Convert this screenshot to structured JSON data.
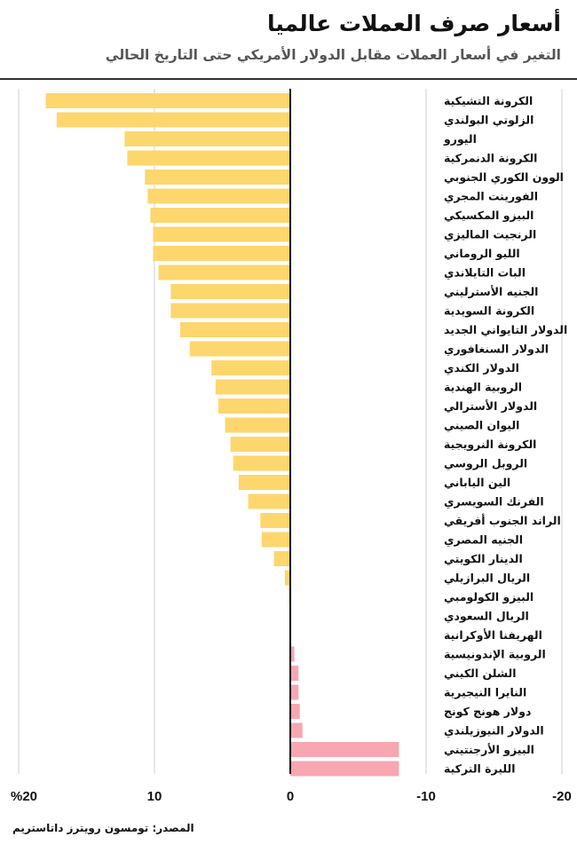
{
  "header": {
    "title": "أسعار صرف العملات عالميا",
    "subtitle": "التغير في أسعار العملات مقابل الدولار الأمريكي حتى التاريخ الحالي"
  },
  "source": "المصدر: تومسون رويترز داتاستريم",
  "chart_data": {
    "type": "bar",
    "orientation": "horizontal",
    "title": "أسعار صرف العملات عالميا",
    "subtitle": "التغير في أسعار العملات مقابل الدولار الأمريكي حتى التاريخ الحالي",
    "xlabel": "",
    "ylabel": "",
    "xlim": [
      20,
      -20
    ],
    "x_reversed": true,
    "grid": true,
    "tick_values": [
      20,
      10,
      0,
      -10,
      -20
    ],
    "tick_labels": [
      "%20",
      "10",
      "0",
      "-10",
      "-20"
    ],
    "colors": {
      "positive": "#fdd66e",
      "negative": "#f8a6b1"
    },
    "categories": [
      "الكرونة التشيكية",
      "الزلوتي البولندي",
      "اليورو",
      "الكرونة الدنمركية",
      "الوون الكوري الجنوبي",
      "الفورينت المجري",
      "البيزو المكسيكي",
      "الرنجيت الماليزي",
      "الليو الروماني",
      "البات التايلاندي",
      "الجنيه الأسترليني",
      "الكرونة السويدية",
      "الدولار التايواني الجديد",
      "الدولار السنغافوري",
      "الدولار الكندي",
      "الروبية الهندية",
      "الدولار الأسترالي",
      "اليوان الصيني",
      "الكرونة النرويجية",
      "الروبل الروسي",
      "الين الياباني",
      "الفرنك السويسري",
      "الراند الجنوب أفريقي",
      "الجنيه المصري",
      "الدينار الكويتي",
      "الريال البرازيلي",
      "البيزو الكولومبي",
      "الريال السعودي",
      "الهريفنا الأوكرانية",
      "الروبية الإندونيسية",
      "الشلن الكيني",
      "النايرا النيجيرية",
      "دولار هونج كونج",
      "الدولار النيوزيلندي",
      "البيزو الأرجنتيني",
      "الليرة التركية"
    ],
    "values": [
      18.0,
      17.2,
      12.2,
      12.0,
      10.7,
      10.5,
      10.3,
      10.1,
      10.1,
      9.7,
      8.8,
      8.8,
      8.1,
      7.4,
      5.8,
      5.5,
      5.3,
      4.8,
      4.4,
      4.2,
      3.8,
      3.1,
      2.2,
      2.1,
      1.2,
      0.4,
      0.1,
      0.0,
      0.0,
      -0.3,
      -0.6,
      -0.6,
      -0.7,
      -0.9,
      -8.0,
      -8.0
    ]
  }
}
